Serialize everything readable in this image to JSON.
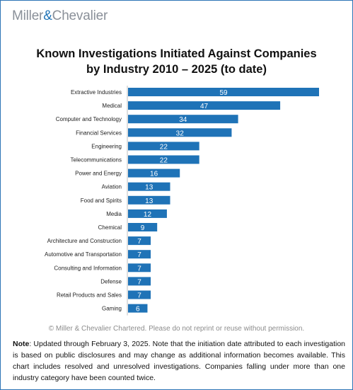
{
  "logo": {
    "part1": "Miller",
    "amp": "&",
    "part2": "Chevalier"
  },
  "title": {
    "line1": "Known Investigations Initiated Against Companies",
    "line2": "by Industry 2010 – 2025 (to date)"
  },
  "copyright": "© Miller & Chevalier Chartered. Please do not reprint or reuse without permission.",
  "note": {
    "label": "Note",
    "text": ": Updated through February 3, 2025. Note that the initiation date attributed to each investigation is based on public disclosures and may change as additional information becomes available. This chart includes resolved and unresolved investigations. Companies falling under more than one industry category have been counted twice."
  },
  "colors": {
    "bar": "#1f73b7",
    "value_label": "#ffffff",
    "category_label": "#222222",
    "border": "#2e75b6"
  },
  "chart_data": {
    "type": "bar",
    "orientation": "horizontal",
    "categories": [
      "Extractive Industries",
      "Medical",
      "Computer and Technology",
      "Financial Services",
      "Engineering",
      "Telecommunications",
      "Power and Energy",
      "Aviation",
      "Food and Spirits",
      "Media",
      "Chemical",
      "Architecture and Construction",
      "Automotive and Transportation",
      "Consulting and Information",
      "Defense",
      "Retail Products and Sales",
      "Gaming"
    ],
    "values": [
      59,
      47,
      34,
      32,
      22,
      22,
      16,
      13,
      13,
      12,
      9,
      7,
      7,
      7,
      7,
      7,
      6
    ],
    "xlim": [
      0,
      59
    ],
    "data_labels": true,
    "grid": false,
    "legend": "none"
  }
}
